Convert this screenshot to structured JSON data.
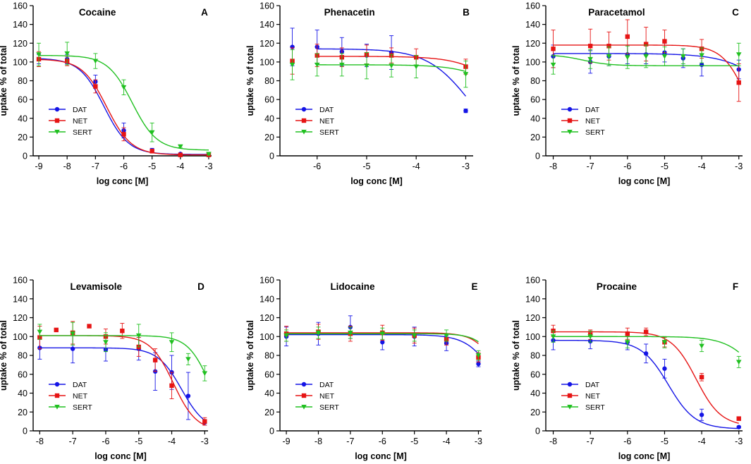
{
  "styles": {
    "series_colors": {
      "DAT": "#1414e6",
      "NET": "#e61414",
      "SERT": "#20c020"
    },
    "series_markers": {
      "DAT": "circle",
      "NET": "square",
      "SERT": "triangle-down"
    },
    "axis_color": "#000000"
  },
  "chart_data": [
    {
      "type": "line",
      "title": "Cocaine",
      "panel_label": "A",
      "xlabel": "log conc [M]",
      "ylabel": "uptake % of total",
      "xlim": [
        -9.2,
        -2.9
      ],
      "ylim": [
        0,
        160
      ],
      "xticks": [
        -9,
        -8,
        -7,
        -6,
        -5,
        -4,
        -3
      ],
      "yticks": [
        0,
        20,
        40,
        60,
        80,
        100,
        120,
        140,
        160
      ],
      "legend_position": "bottom-left",
      "series": [
        {
          "name": "DAT",
          "x": [
            -9,
            -8,
            -7,
            -6,
            -5,
            -4,
            -3
          ],
          "y": [
            103,
            103,
            79,
            27,
            6,
            2,
            1
          ],
          "err": [
            5,
            5,
            7,
            8,
            2,
            1,
            1
          ],
          "fit": {
            "top": 104,
            "bottom": 1.5,
            "logic50": -6.7,
            "hill": 1.0
          }
        },
        {
          "name": "NET",
          "x": [
            -9,
            -8,
            -7,
            -6,
            -5,
            -4,
            -3
          ],
          "y": [
            103,
            101,
            74,
            23,
            5,
            1,
            1
          ],
          "err": [
            8,
            5,
            7,
            7,
            2,
            1,
            1
          ],
          "fit": {
            "top": 103,
            "bottom": 1.0,
            "logic50": -6.6,
            "hill": 1.0
          }
        },
        {
          "name": "SERT",
          "x": [
            -9,
            -8,
            -7,
            -6,
            -5,
            -4,
            -3
          ],
          "y": [
            108,
            109,
            101,
            73,
            25,
            10,
            2
          ],
          "err": [
            12,
            12,
            8,
            8,
            10,
            1,
            1
          ],
          "fit": {
            "top": 107,
            "bottom": 6,
            "logic50": -5.7,
            "hill": 1.0
          }
        }
      ]
    },
    {
      "type": "line",
      "title": "Phenacetin",
      "panel_label": "B",
      "xlabel": "log conc [M]",
      "ylabel": "uptake % of total",
      "xlim": [
        -6.75,
        -2.85
      ],
      "ylim": [
        0,
        160
      ],
      "xticks": [
        -6,
        -5,
        -4,
        -3
      ],
      "yticks": [
        0,
        20,
        40,
        60,
        80,
        100,
        120,
        140,
        160
      ],
      "legend_position": "bottom-left",
      "series": [
        {
          "name": "DAT",
          "x": [
            -6.5,
            -6,
            -5.5,
            -5,
            -4.5,
            -3
          ],
          "y": [
            116,
            116,
            111,
            107,
            110,
            48
          ],
          "err": [
            20,
            18,
            15,
            12,
            18,
            2
          ],
          "fit": {
            "top": 114,
            "bottom": 0,
            "logic50": -2.9,
            "hill": 1.0
          }
        },
        {
          "name": "NET",
          "x": [
            -6.5,
            -6,
            -5.5,
            -5,
            -4.5,
            -4,
            -3
          ],
          "y": [
            101,
            107,
            105,
            108,
            107,
            105,
            95
          ],
          "err": [
            14,
            12,
            10,
            10,
            8,
            9,
            8
          ],
          "fit": {
            "top": 106,
            "bottom": 0,
            "logic50": -2.0,
            "hill": 1.0
          }
        },
        {
          "name": "SERT",
          "x": [
            -6.5,
            -6,
            -5.5,
            -5,
            -4.5,
            -4,
            -3
          ],
          "y": [
            97,
            97,
            97,
            96,
            96,
            95,
            87
          ],
          "err": [
            16,
            12,
            12,
            14,
            12,
            12,
            14
          ],
          "fit": {
            "top": 97,
            "bottom": 0,
            "logic50": -1.9,
            "hill": 1.0
          }
        }
      ]
    },
    {
      "type": "line",
      "title": "Paracetamol",
      "panel_label": "C",
      "xlabel": "log conc [M]",
      "ylabel": "uptake % of total",
      "xlim": [
        -8.2,
        -2.9
      ],
      "ylim": [
        0,
        160
      ],
      "xticks": [
        -8,
        -7,
        -6,
        -5,
        -4,
        -3
      ],
      "yticks": [
        0,
        20,
        40,
        60,
        80,
        100,
        120,
        140,
        160
      ],
      "legend_position": "bottom-left",
      "series": [
        {
          "name": "DAT",
          "x": [
            -8,
            -7,
            -6.5,
            -6,
            -5.5,
            -5,
            -4.5,
            -4,
            -3
          ],
          "y": [
            106,
            100,
            106,
            108,
            108,
            110,
            104,
            97,
            92
          ],
          "err": [
            12,
            12,
            10,
            10,
            10,
            10,
            10,
            12,
            10
          ],
          "fit": {
            "top": 109,
            "bottom": 0,
            "logic50": -1.8,
            "hill": 0.7
          }
        },
        {
          "name": "NET",
          "x": [
            -8,
            -7,
            -6.5,
            -6,
            -5.5,
            -5,
            -4,
            -3
          ],
          "y": [
            114,
            117,
            117,
            127,
            119,
            122,
            114,
            78
          ],
          "err": [
            20,
            18,
            15,
            18,
            18,
            12,
            10,
            20
          ],
          "fit": {
            "top": 118,
            "bottom": 0,
            "logic50": -2.75,
            "hill": 1.3
          }
        },
        {
          "name": "SERT",
          "x": [
            -8,
            -7,
            -6.5,
            -6,
            -5.5,
            -5,
            -4.5,
            -4,
            -3
          ],
          "y": [
            97,
            103,
            106,
            105,
            106,
            106,
            106,
            107,
            108
          ],
          "err": [
            10,
            10,
            10,
            12,
            12,
            10,
            8,
            8,
            12
          ],
          "fit": {
            "bottom": 96,
            "top": 108,
            "logic50": -7.2,
            "hill": 1.2
          }
        }
      ]
    },
    {
      "type": "line",
      "title": "Levamisole",
      "panel_label": "D",
      "xlabel": "log conc [M]",
      "ylabel": "uptake % of total",
      "xlim": [
        -8.2,
        -2.9
      ],
      "ylim": [
        0,
        160
      ],
      "xticks": [
        -8,
        -7,
        -6,
        -5,
        -4,
        -3
      ],
      "yticks": [
        0,
        20,
        40,
        60,
        80,
        100,
        120,
        140,
        160
      ],
      "legend_position": "bottom-left",
      "series": [
        {
          "name": "DAT",
          "x": [
            -8,
            -7,
            -6,
            -5,
            -4.5,
            -4,
            -3.5,
            -3
          ],
          "y": [
            88,
            87,
            86,
            87,
            63,
            62,
            37,
            9
          ],
          "err": [
            12,
            15,
            12,
            12,
            20,
            18,
            25,
            3
          ],
          "fit": {
            "top": 88,
            "bottom": 0,
            "logic50": -3.7,
            "hill": 1.2
          }
        },
        {
          "name": "NET",
          "x": [
            -8,
            -7.5,
            -7,
            -6.5,
            -6,
            -5.5,
            -5,
            -4.5,
            -4,
            -3
          ],
          "y": [
            99,
            107,
            104,
            111,
            100,
            106,
            89,
            75,
            48,
            10
          ],
          "err": [
            12,
            0,
            12,
            0,
            8,
            8,
            10,
            12,
            14,
            4
          ],
          "fit": {
            "top": 101,
            "bottom": 0,
            "logic50": -3.95,
            "hill": 1.25
          }
        },
        {
          "name": "SERT",
          "x": [
            -8,
            -7,
            -6,
            -5,
            -4,
            -3.5,
            -3
          ],
          "y": [
            105,
            103,
            94,
            101,
            94,
            76,
            61
          ],
          "err": [
            8,
            12,
            10,
            12,
            10,
            6,
            8
          ],
          "fit": {
            "top": 101,
            "bottom": 0,
            "logic50": -2.85,
            "hill": 1.3
          }
        }
      ]
    },
    {
      "type": "line",
      "title": "Lidocaine",
      "panel_label": "E",
      "xlabel": "log conc [M]",
      "ylabel": "uptake % of total",
      "xlim": [
        -9.2,
        -2.9
      ],
      "ylim": [
        0,
        160
      ],
      "xticks": [
        -9,
        -8,
        -7,
        -6,
        -5,
        -4,
        -3
      ],
      "yticks": [
        0,
        20,
        40,
        60,
        80,
        100,
        120,
        140,
        160
      ],
      "legend_position": "bottom-left",
      "series": [
        {
          "name": "DAT",
          "x": [
            -9,
            -8,
            -7,
            -6,
            -5,
            -4,
            -3
          ],
          "y": [
            100,
            103,
            110,
            94,
            100,
            93,
            71
          ],
          "err": [
            10,
            12,
            12,
            8,
            10,
            8,
            3
          ],
          "fit": {
            "top": 102,
            "bottom": 0,
            "logic50": -2.4,
            "hill": 1.0
          }
        },
        {
          "name": "NET",
          "x": [
            -9,
            -8,
            -7,
            -6,
            -5,
            -4,
            -3
          ],
          "y": [
            103,
            105,
            103,
            104,
            101,
            97,
            78
          ],
          "err": [
            8,
            8,
            8,
            8,
            8,
            6,
            5
          ],
          "fit": {
            "top": 104,
            "bottom": 0,
            "logic50": -2.25,
            "hill": 1.2
          }
        },
        {
          "name": "SERT",
          "x": [
            -9,
            -8,
            -7,
            -6,
            -5,
            -4,
            -3
          ],
          "y": [
            101,
            104,
            104,
            103,
            101,
            101,
            80
          ],
          "err": [
            6,
            6,
            6,
            6,
            6,
            6,
            5
          ],
          "fit": {
            "top": 103,
            "bottom": 0,
            "logic50": -2.2,
            "hill": 1.3
          }
        }
      ]
    },
    {
      "type": "line",
      "title": "Procaine",
      "panel_label": "F",
      "xlabel": "log conc [M]",
      "ylabel": "uptake % of total",
      "xlim": [
        -8.2,
        -2.9
      ],
      "ylim": [
        0,
        160
      ],
      "xticks": [
        -8,
        -7,
        -6,
        -5,
        -4,
        -3
      ],
      "yticks": [
        0,
        20,
        40,
        60,
        80,
        100,
        120,
        140,
        160
      ],
      "legend_position": "bottom-left",
      "series": [
        {
          "name": "DAT",
          "x": [
            -8,
            -7,
            -6,
            -5.5,
            -5,
            -4,
            -3
          ],
          "y": [
            96,
            95,
            94,
            82,
            66,
            17,
            4
          ],
          "err": [
            10,
            8,
            8,
            10,
            10,
            6,
            1
          ],
          "fit": {
            "top": 96,
            "bottom": 2,
            "logic50": -4.9,
            "hill": 1.2
          }
        },
        {
          "name": "NET",
          "x": [
            -8,
            -7,
            -6,
            -5.5,
            -5,
            -4,
            -3
          ],
          "y": [
            106,
            102,
            103,
            105,
            94,
            57,
            13
          ],
          "err": [
            6,
            5,
            6,
            4,
            5,
            4,
            2
          ],
          "fit": {
            "top": 105,
            "bottom": 5,
            "logic50": -4.15,
            "hill": 1.3
          }
        },
        {
          "name": "SERT",
          "x": [
            -8,
            -7,
            -6,
            -5,
            -4,
            -3
          ],
          "y": [
            100,
            100,
            94,
            94,
            90,
            73
          ],
          "err": [
            6,
            6,
            6,
            6,
            6,
            6
          ],
          "fit": {
            "top": 100,
            "bottom": 0,
            "logic50": -2.3,
            "hill": 1.0
          }
        }
      ]
    }
  ]
}
